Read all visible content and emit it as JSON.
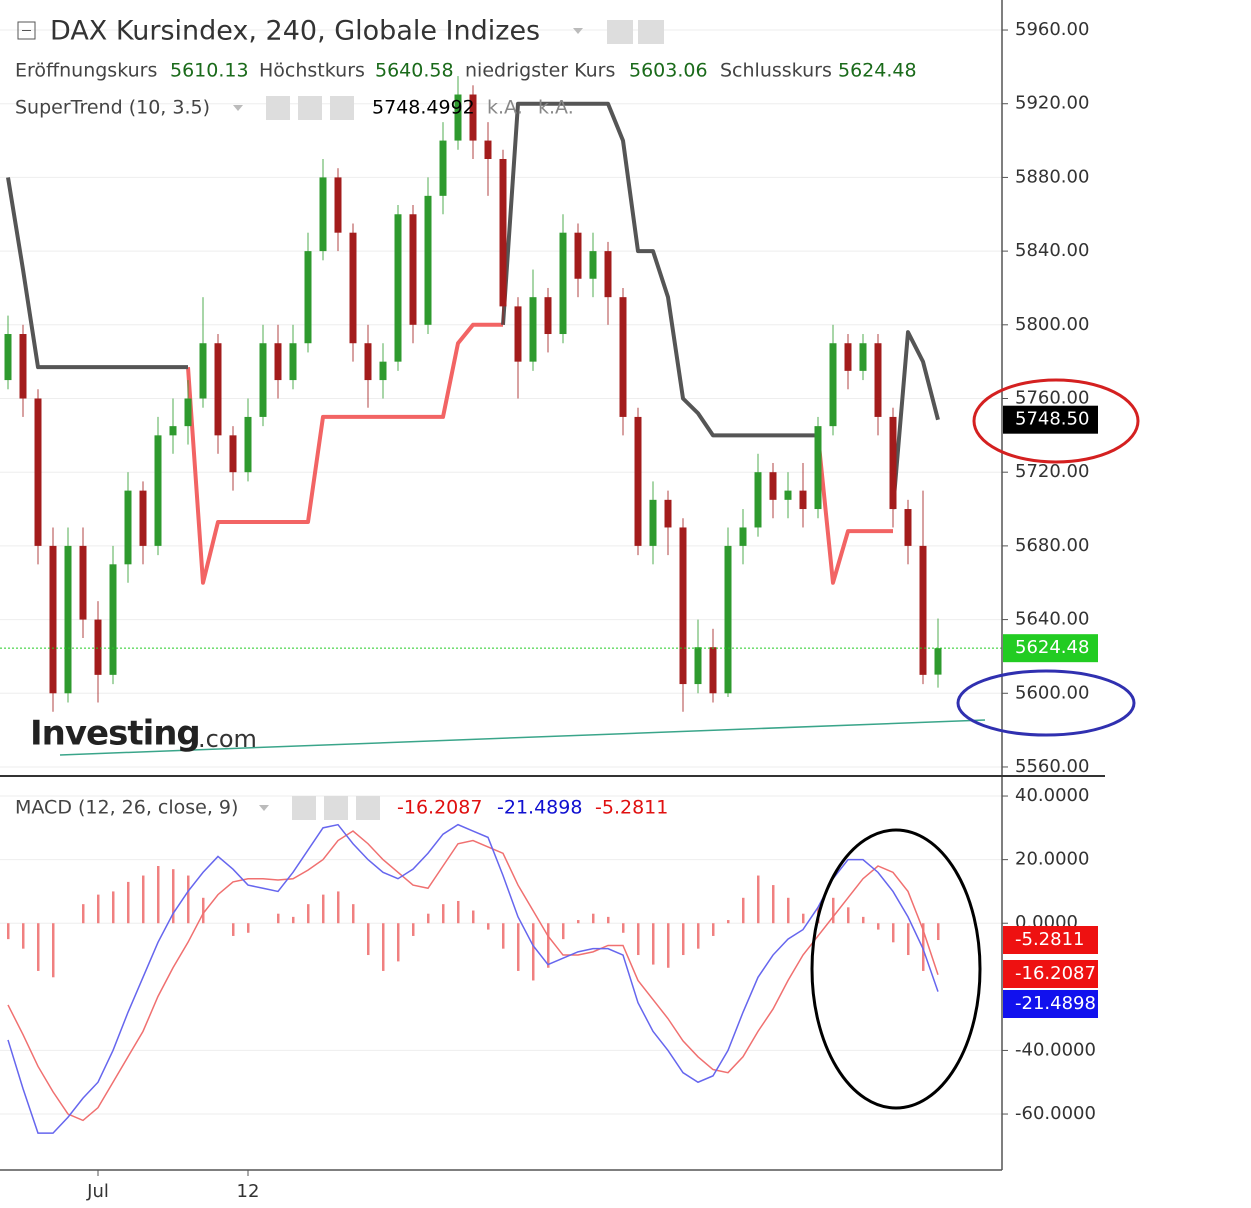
{
  "chart_data": [
    {
      "type": "candlestick",
      "title": "DAX Kursindex, 240, Globale Indizes",
      "ohlc_labels": [
        "Eröffnungskurs",
        "Höchstkurs",
        "niedrigster Kurs",
        "Schlusskurs"
      ],
      "open": [
        5770,
        5795,
        5760,
        5680,
        5600,
        5680,
        5640,
        5610,
        5670,
        5710,
        5680,
        5740,
        5745,
        5760,
        5790,
        5740,
        5720,
        5750,
        5790,
        5770,
        5790,
        5840,
        5880,
        5850,
        5790,
        5770,
        5780,
        5860,
        5800,
        5870,
        5900,
        5925,
        5900,
        5890,
        5810,
        5780,
        5815,
        5795,
        5850,
        5825,
        5840,
        5815,
        5750,
        5680,
        5705,
        5690,
        5605,
        5625,
        5600,
        5680,
        5690,
        5720,
        5705,
        5710,
        5700,
        5745,
        5790,
        5775,
        5790,
        5750,
        5700,
        5680,
        5610.13
      ],
      "high": [
        5805,
        5800,
        5765,
        5690,
        5690,
        5690,
        5650,
        5680,
        5720,
        5715,
        5750,
        5760,
        5770,
        5815,
        5795,
        5745,
        5760,
        5800,
        5800,
        5800,
        5850,
        5890,
        5885,
        5855,
        5800,
        5790,
        5865,
        5865,
        5880,
        5910,
        5935,
        5930,
        5910,
        5895,
        5815,
        5830,
        5820,
        5860,
        5855,
        5850,
        5845,
        5820,
        5755,
        5715,
        5710,
        5695,
        5640,
        5635,
        5690,
        5700,
        5730,
        5725,
        5720,
        5725,
        5750,
        5800,
        5795,
        5795,
        5795,
        5755,
        5705,
        5710,
        5640.58
      ],
      "low": [
        5765,
        5750,
        5670,
        5590,
        5595,
        5630,
        5595,
        5605,
        5660,
        5670,
        5675,
        5730,
        5735,
        5755,
        5730,
        5710,
        5715,
        5745,
        5760,
        5765,
        5785,
        5835,
        5840,
        5780,
        5755,
        5760,
        5775,
        5790,
        5795,
        5860,
        5895,
        5890,
        5870,
        5800,
        5760,
        5775,
        5785,
        5790,
        5815,
        5815,
        5800,
        5740,
        5675,
        5670,
        5675,
        5590,
        5600,
        5595,
        5598,
        5670,
        5685,
        5695,
        5695,
        5690,
        5695,
        5740,
        5765,
        5770,
        5740,
        5690,
        5670,
        5605,
        5603.06
      ],
      "close": [
        5795,
        5760,
        5680,
        5600,
        5680,
        5640,
        5610,
        5670,
        5710,
        5680,
        5740,
        5745,
        5760,
        5790,
        5740,
        5720,
        5750,
        5790,
        5770,
        5790,
        5840,
        5880,
        5850,
        5790,
        5770,
        5780,
        5860,
        5800,
        5870,
        5900,
        5925,
        5900,
        5890,
        5810,
        5780,
        5815,
        5795,
        5850,
        5825,
        5840,
        5815,
        5750,
        5680,
        5705,
        5690,
        5605,
        5625,
        5600,
        5680,
        5690,
        5720,
        5705,
        5710,
        5700,
        5745,
        5790,
        5775,
        5790,
        5750,
        5700,
        5680,
        5610,
        5624.48
      ],
      "up_color": "#2e9a2e",
      "down_color": "#a31c1c",
      "last_line_color": "#22cc22",
      "ylim": [
        5555.1,
        5976.3
      ],
      "yticks": [
        {
          "value": 5560,
          "label": "5560.00"
        },
        {
          "value": 5600,
          "label": "5600.00"
        },
        {
          "value": 5640,
          "label": "5640.00"
        },
        {
          "value": 5680,
          "label": "5680.00"
        },
        {
          "value": 5720,
          "label": "5720.00"
        },
        {
          "value": 5760,
          "label": "5760.00"
        },
        {
          "value": 5800,
          "label": "5800.00"
        },
        {
          "value": 5840,
          "label": "5840.00"
        },
        {
          "value": 5880,
          "label": "5880.00"
        },
        {
          "value": 5920,
          "label": "5920.00"
        },
        {
          "value": 5960,
          "label": "5960.00"
        }
      ],
      "grid": true,
      "indicator": {
        "name": "SuperTrend (10, 3.5)",
        "up_values": [
          null,
          null,
          null,
          null,
          null,
          null,
          null,
          null,
          null,
          null,
          null,
          null,
          5777,
          5660,
          5693,
          5693,
          5693,
          5693,
          5693,
          5693,
          5693,
          5750,
          5750,
          5750,
          5750,
          5750,
          5750,
          5750,
          5750,
          5750,
          5790,
          5800,
          5800,
          5800,
          null,
          null,
          null,
          null,
          null,
          null,
          null,
          null,
          null,
          null,
          null,
          null,
          null,
          null,
          null,
          null,
          null,
          null,
          null,
          null,
          5740,
          5660,
          5688,
          5688,
          5688,
          5688,
          null,
          null,
          null
        ],
        "down_values": [
          5880,
          5830,
          5777,
          5777,
          5777,
          5777,
          5777,
          5777,
          5777,
          5777,
          5777,
          5777,
          5777,
          null,
          null,
          null,
          null,
          null,
          null,
          null,
          null,
          null,
          null,
          null,
          null,
          null,
          null,
          null,
          null,
          null,
          null,
          null,
          null,
          5800,
          5920,
          5920,
          5920,
          5920,
          5920,
          5920,
          5920,
          5900,
          5840,
          5840,
          5815,
          5760,
          5752,
          5740,
          5740,
          5740,
          5740,
          5740,
          5740,
          5740,
          5740,
          null,
          null,
          null,
          null,
          5700,
          5796,
          5780,
          5748.4992
        ],
        "up_color": "#f26464",
        "down_color": "#555555",
        "na_labels": [
          "k.A.",
          "k.A."
        ],
        "badge": {
          "value": 5748.5,
          "label": "5748.50"
        }
      },
      "watermark": [
        "Investing",
        ".com"
      ]
    },
    {
      "type": "macd",
      "title": "MACD (12, 26, close, 9)",
      "categories": [
        null,
        null,
        null,
        null,
        null,
        null,
        "Jul",
        null,
        null,
        null,
        null,
        null,
        null,
        null,
        null,
        null,
        "12",
        null,
        null,
        null,
        null,
        null,
        null,
        null,
        null,
        null,
        null,
        null,
        null,
        null,
        null,
        null,
        null,
        null,
        null,
        null,
        null,
        null,
        null,
        null,
        null,
        null,
        null,
        null,
        null,
        null,
        null,
        null,
        null,
        null,
        null,
        null,
        null,
        null,
        null,
        null,
        null,
        null,
        null,
        null,
        null,
        null,
        null
      ],
      "macd": [
        -36.7,
        -52,
        -66,
        -66,
        -61,
        -55,
        -50,
        -40,
        -28,
        -17,
        -6,
        3,
        10,
        16,
        21,
        17,
        12,
        11,
        10,
        16,
        23,
        30,
        31,
        25,
        20,
        16,
        14,
        17,
        22,
        28,
        31,
        29,
        27,
        15,
        2,
        -7,
        -13,
        -11,
        -9,
        -8,
        -8,
        -10,
        -25,
        -34,
        -40,
        -47,
        -50,
        -48,
        -40,
        -28,
        -17,
        -10,
        -5,
        -2,
        5,
        14,
        20,
        20,
        16,
        10,
        2,
        -8,
        -21.4898
      ],
      "signal": [
        -25.7,
        -35,
        -45,
        -53,
        -60,
        -62,
        -58,
        -50,
        -42,
        -34,
        -23,
        -14,
        -6,
        3,
        9,
        13,
        14,
        14,
        13.6,
        14,
        16.7,
        20,
        26,
        29,
        25,
        20,
        16,
        12,
        11,
        18,
        25,
        26,
        24,
        22,
        12,
        4,
        -4,
        -10,
        -10,
        -9,
        -7,
        -7,
        -18,
        -24,
        -30,
        -37,
        -42,
        -46,
        -47,
        -42,
        -34,
        -27,
        -18,
        -10,
        -4,
        2,
        8,
        14,
        18,
        16,
        10,
        -2,
        -16.2087
      ],
      "histogram": [
        -5,
        -8,
        -15,
        -17,
        0,
        6,
        9,
        10,
        13,
        15,
        18,
        17,
        15,
        8,
        0,
        -4,
        -3,
        0,
        3,
        2,
        6,
        9,
        10,
        6,
        -10,
        -15,
        -12,
        -4,
        3,
        6,
        7,
        4,
        -2,
        -8,
        -15,
        -18,
        -14,
        -5,
        1,
        3,
        2,
        -3,
        -10,
        -13,
        -14,
        -10,
        -8,
        -4,
        1,
        8,
        15,
        12,
        8,
        3,
        5,
        8,
        5,
        2,
        -2,
        -6,
        -10,
        -15,
        -5.2811
      ],
      "macd_color": "#6666ee",
      "signal_color": "#f07070",
      "histogram_color": "#f08080",
      "ylim": [
        -77.6,
        46.3
      ],
      "yticks": [
        {
          "value": -60,
          "label": "-60.0000"
        },
        {
          "value": -40,
          "label": "-40.0000"
        },
        {
          "value": 0,
          "label": "0.0000"
        },
        {
          "value": 20,
          "label": "20.0000"
        },
        {
          "value": 40,
          "label": "40.0000"
        }
      ],
      "grid": true
    }
  ]
}
